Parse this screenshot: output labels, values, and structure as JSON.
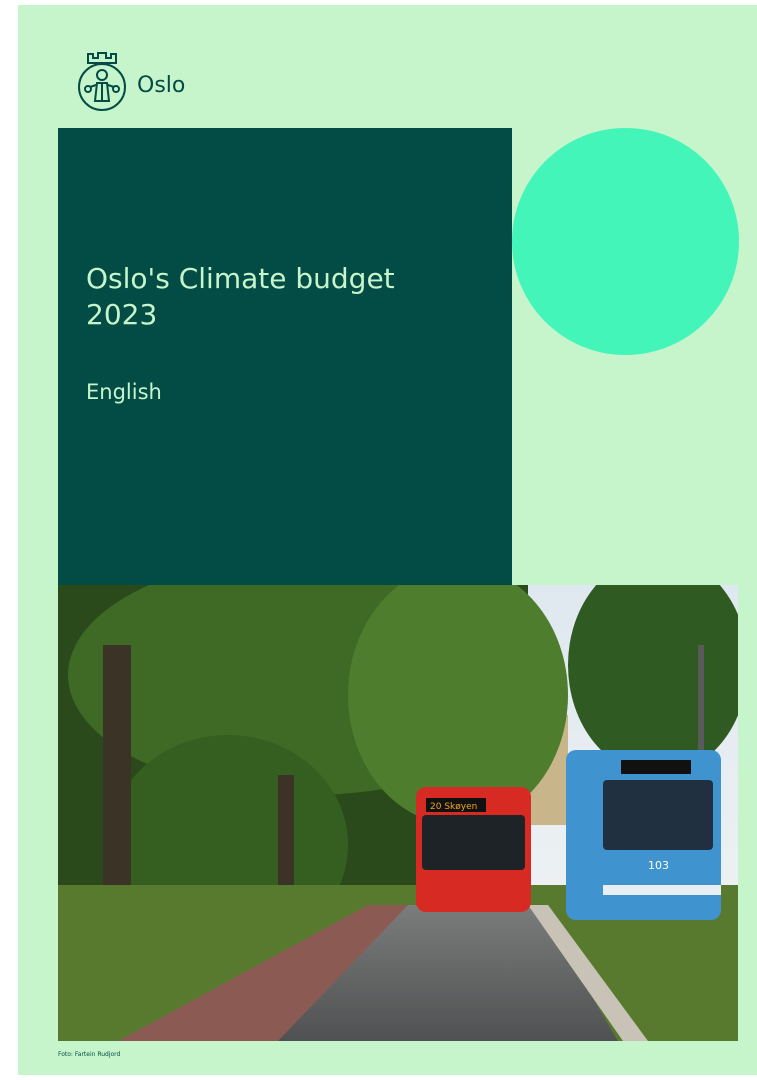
{
  "header": {
    "brand": "Oslo"
  },
  "cover": {
    "title": "Oslo's Climate budget 2023",
    "language": "English"
  },
  "photo": {
    "bus_sign": "20 Skøyen",
    "tram_number": "103",
    "credit": "Foto: Fartein Rudjord"
  }
}
